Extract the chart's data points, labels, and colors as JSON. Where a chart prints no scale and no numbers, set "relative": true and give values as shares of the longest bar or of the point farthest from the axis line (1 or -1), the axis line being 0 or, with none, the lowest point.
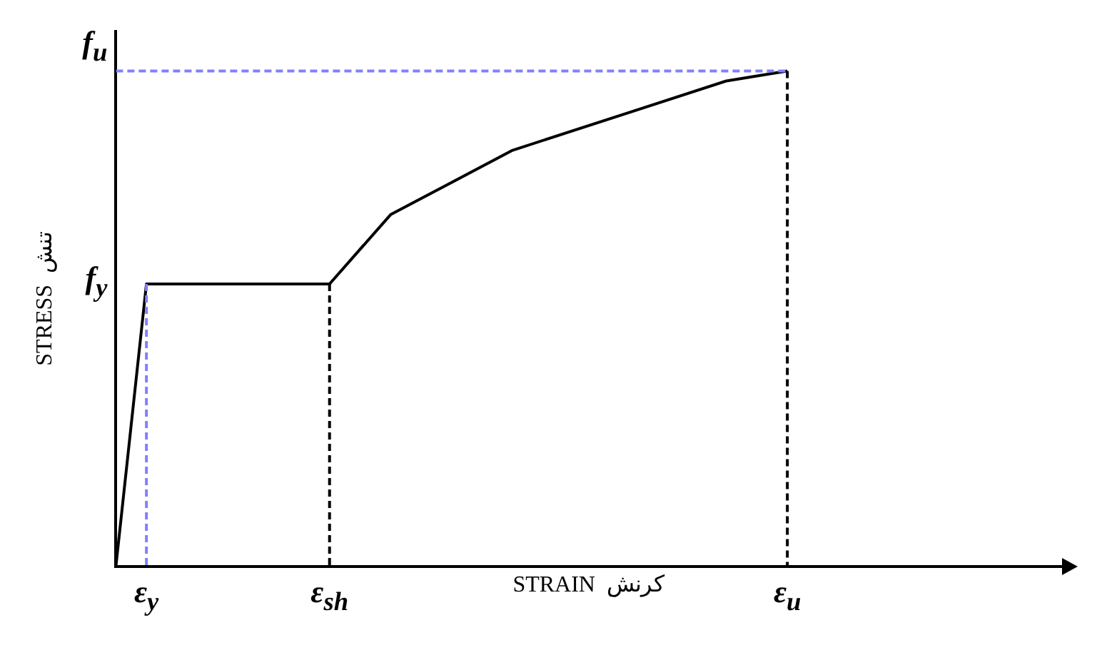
{
  "chart_data": {
    "type": "line",
    "relative": true,
    "xlabel": "STRAIN  كرنش",
    "ylabel": "STRESS  تنش",
    "categories": [
      null,
      "ε$_{y}$",
      null,
      null,
      null,
      null,
      null,
      "ε$_{sh}$",
      null,
      null,
      null,
      null,
      null,
      null,
      null,
      null,
      null,
      null,
      null,
      null,
      null,
      null,
      "ε$_{u}$",
      null,
      null,
      null,
      null,
      null,
      null,
      null,
      null,
      null
    ],
    "grid": false,
    "legend": false,
    "marker": "none",
    "annotations": [
      {
        "text": "f$_{y}$",
        "x": "ε$_{y}$",
        "y": 0.57
      },
      "f$_{u}$"
    ],
    "series": [
      {
        "color": "#000000",
        "values": [
          0,
          0.57,
          null,
          null,
          null,
          null,
          null,
          0.57,
          null,
          0.71,
          null,
          null,
          null,
          0.84,
          null,
          null,
          null,
          0.92,
          null,
          null,
          0.98,
          null,
          1,
          null,
          null,
          null,
          null,
          null,
          null,
          null,
          null,
          null
        ]
      },
      {
        "color": "#8080ff",
        "line_style": "dashed",
        "values": [
          1,
          null,
          null,
          null,
          null,
          null,
          null,
          null,
          null,
          null,
          null,
          null,
          null,
          null,
          null,
          null,
          null,
          null,
          null,
          null,
          null,
          null,
          1,
          null,
          null,
          null,
          null,
          null,
          null,
          null,
          null,
          null
        ]
      },
      {
        "color": "#8080ff",
        "line_style": "dashed",
        "x": [
          "ε$_{y}$",
          "ε$_{y}$"
        ],
        "values": [
          0.57,
          0
        ]
      },
      {
        "color": "#000000",
        "line_style": "dashed",
        "x": [
          "ε$_{sh}$",
          "ε$_{sh}$"
        ],
        "values": [
          0.57,
          0
        ]
      },
      {
        "color": "#000000",
        "line_style": "dashed",
        "x": [
          "ε$_{u}$",
          "ε$_{u}$"
        ],
        "values": [
          1,
          0
        ]
      }
    ]
  }
}
